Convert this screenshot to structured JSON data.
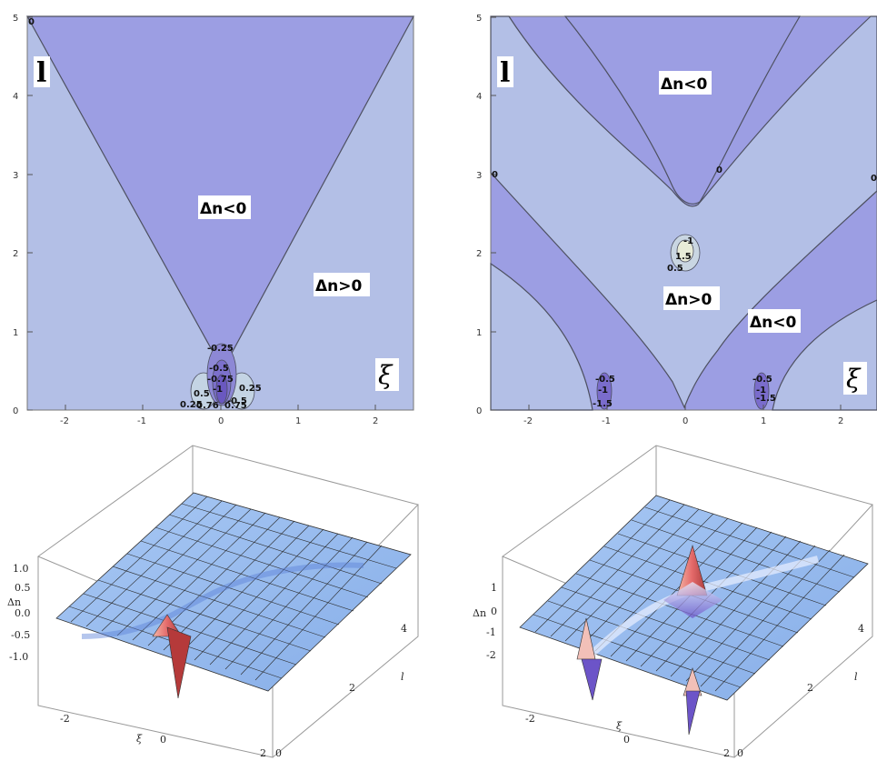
{
  "colors": {
    "negative_region": "#9c9ee3",
    "positive_region": "#b3bfe6",
    "contour_line": "#4d5060",
    "surface_base": "#9bbcef",
    "surface_peak": "#e46a6a",
    "surface_valley": "#6c54c8"
  },
  "chart_data": [
    {
      "type": "contour",
      "grid": false,
      "xlim": [
        -2.5,
        2.5
      ],
      "ylim": [
        0,
        5
      ],
      "x_ticks": [
        "-2",
        "-1",
        "0",
        "1",
        "2"
      ],
      "y_ticks": [
        "0",
        "1",
        "2",
        "3",
        "4",
        "5"
      ],
      "axis_letter_vertical": "l",
      "axis_letter_horizontal": "ξ",
      "zero_contour": {
        "label": "0",
        "left_branch": [
          [
            -2.5,
            5.0
          ],
          [
            -0.1,
            0.35
          ]
        ],
        "right_branch": [
          [
            0.1,
            0.35
          ],
          [
            2.5,
            5.0
          ]
        ]
      },
      "contour_labels": [
        "0",
        "-0.25",
        "-0.5",
        "-0.75",
        "-1",
        "0.5",
        "0.25",
        "0.25",
        "0.76",
        "0.75",
        "-0.5"
      ],
      "region_labels": [
        "Δn<0",
        "Δn>0"
      ]
    },
    {
      "type": "contour",
      "grid": false,
      "xlim": [
        -2.5,
        2.5
      ],
      "ylim": [
        0,
        5
      ],
      "x_ticks": [
        "-2",
        "-1",
        "0",
        "1",
        "2"
      ],
      "y_ticks": [
        "0",
        "1",
        "2",
        "3",
        "4",
        "5"
      ],
      "axis_letter_vertical": "l",
      "axis_letter_horizontal": "ξ",
      "zero_contours": {
        "label": "0",
        "inner_hyperbola_vertex": [
          0,
          2.6
        ],
        "outer_v_vertex": [
          0,
          0
        ]
      },
      "contour_labels": [
        "0",
        "0",
        "0",
        "-1",
        "1.5",
        "0.5",
        "-0.5",
        "-1",
        "-1.5",
        "-0.5",
        "-1",
        "-1.5"
      ],
      "region_labels": [
        "Δn<0",
        "Δn>0",
        "Δn<0"
      ]
    },
    {
      "type": "surface3d",
      "z_label": "Δn",
      "x_label": "ξ",
      "y_label": "l",
      "z_ticks": [
        "1.0",
        "0.5",
        "0.0",
        "-0.5",
        "-1.0"
      ],
      "x_ticks": [
        "-2",
        "0",
        "2"
      ],
      "y_ticks": [
        "0",
        "2",
        "4"
      ],
      "features": "single dipole spike near ξ=0, l≈0 (peak ~1, trough ~-1)"
    },
    {
      "type": "surface3d",
      "z_label": "Δn",
      "x_label": "ξ",
      "y_label": "l",
      "z_ticks": [
        "1",
        "0",
        "-1",
        "-2"
      ],
      "x_ticks": [
        "-2",
        "0",
        "2"
      ],
      "y_ticks": [
        "0",
        "2",
        "4"
      ],
      "features": "spikes near ξ=±1 at l≈0 and at ξ=0, l≈2"
    }
  ]
}
